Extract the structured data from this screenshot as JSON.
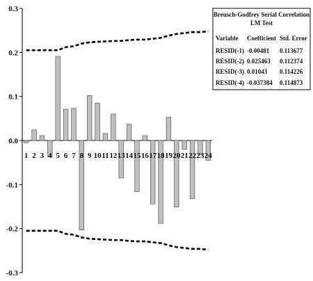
{
  "chart_data": {
    "type": "bar",
    "categories": [
      "1",
      "2",
      "3",
      "4",
      "5",
      "6",
      "7",
      "8",
      "9",
      "10",
      "11",
      "12",
      "13",
      "14",
      "15",
      "16",
      "17",
      "18",
      "19",
      "20",
      "21",
      "22",
      "23",
      "24"
    ],
    "values": [
      -0.005,
      0.024,
      0.011,
      -0.037,
      0.191,
      0.071,
      0.073,
      -0.203,
      0.102,
      0.085,
      0.016,
      0.06,
      -0.085,
      0.037,
      -0.116,
      0.011,
      -0.144,
      -0.188,
      0.053,
      -0.151,
      -0.02,
      -0.132,
      -0.032,
      -0.045
    ],
    "series": [
      {
        "values": [
          0.205,
          0.205,
          0.205,
          0.205,
          0.205,
          0.212,
          0.214,
          0.22,
          0.223,
          0.224,
          0.225,
          0.226,
          0.226,
          0.228,
          0.229,
          0.229,
          0.231,
          0.233,
          0.238,
          0.242,
          0.244,
          0.246,
          0.246,
          0.248
        ]
      },
      {
        "values": [
          -0.205,
          -0.205,
          -0.205,
          -0.205,
          -0.205,
          -0.212,
          -0.214,
          -0.22,
          -0.223,
          -0.224,
          -0.225,
          -0.226,
          -0.226,
          -0.228,
          -0.229,
          -0.229,
          -0.231,
          -0.233,
          -0.238,
          -0.242,
          -0.244,
          -0.246,
          -0.246,
          -0.248
        ]
      }
    ],
    "ylim": [
      -0.3,
      0.3
    ],
    "yticks": [
      "0.3",
      "0.2",
      "0.1",
      "0.0",
      "-0.1",
      "-0.2",
      "-0.3"
    ],
    "bar_color": "#c0c0c0",
    "bar_stroke": "#555555",
    "band_color": "#000000",
    "grid": false,
    "table": {
      "title_line1": "Breusch-Godfrey Serial Correlation",
      "title_line2": "LM Test",
      "headers": [
        "Variable",
        "Coefficient",
        "Std. Error"
      ],
      "rows": [
        [
          "RESID(-1)",
          "-0.00481",
          "0.113677"
        ],
        [
          "RESID(-2)",
          "0.025463",
          "0.112374"
        ],
        [
          "RESID(-3)",
          "0.01043",
          "0.114226"
        ],
        [
          "RESID(-4)",
          "-0.037384",
          "0.114873"
        ]
      ]
    }
  }
}
